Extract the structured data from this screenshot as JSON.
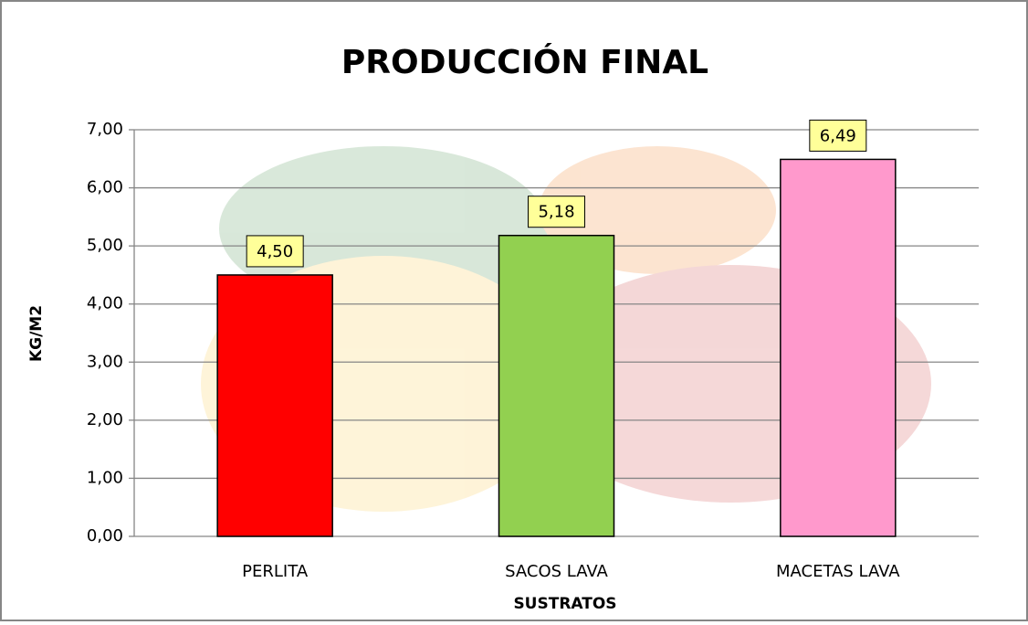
{
  "chart_data": {
    "type": "bar",
    "title": "PRODUCCIÓN FINAL",
    "x_label": "SUSTRATOS",
    "y_label": "KG/M2",
    "categories": [
      "PERLITA",
      "SACOS LAVA",
      "MACETAS LAVA"
    ],
    "values": [
      4.5,
      5.18,
      6.49
    ],
    "value_labels": [
      "4,50",
      "5,18",
      "6,49"
    ],
    "colors": [
      "#ff0000",
      "#92d050",
      "#ff99cc"
    ],
    "ylim": [
      0,
      7
    ],
    "yticks": [
      {
        "value": 0,
        "label": "0,00"
      },
      {
        "value": 1,
        "label": "1,00"
      },
      {
        "value": 2,
        "label": "2,00"
      },
      {
        "value": 3,
        "label": "3,00"
      },
      {
        "value": 4,
        "label": "4,00"
      },
      {
        "value": 5,
        "label": "5,00"
      },
      {
        "value": 6,
        "label": "6,00"
      },
      {
        "value": 7,
        "label": "7,00"
      }
    ],
    "grid": true
  }
}
